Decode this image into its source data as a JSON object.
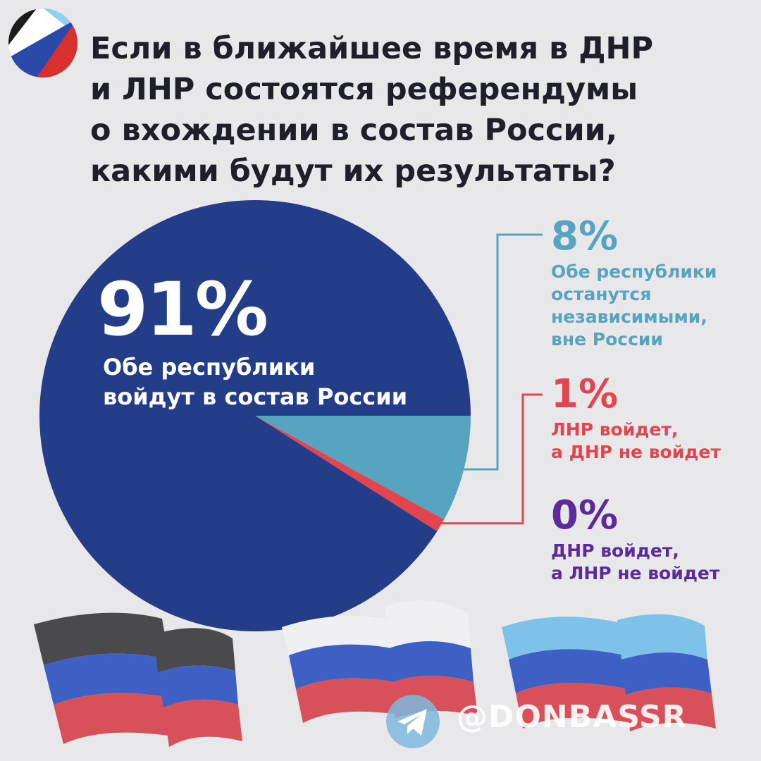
{
  "title": "Если в ближайшее время в ДНР\nи ЛНР состоятся референдумы\nо вхождении в состав России,\nкакими будут их результаты?",
  "colors": {
    "background": "#e8e8ea",
    "main_slice": "#233d89",
    "independent": "#56a4bf",
    "lnr_only": "#e2454e",
    "dnr_only": "#5d2a9c",
    "title_text": "#1f1f2a"
  },
  "icons": {
    "logo": "ru-flag-circle-icon",
    "watermark": "telegram-icon"
  },
  "watermark": "@DONBASSR",
  "chart_data": {
    "type": "pie",
    "title": "Если в ближайшее время в ДНР и ЛНР состоятся референдумы о вхождении в состав России, какими будут их результаты?",
    "start_angle_deg": 0,
    "direction": "clockwise",
    "slices": [
      {
        "value": 8,
        "pct_label": "8%",
        "label": "Обе республики\nостанутся\nнезависимыми,\nвне России",
        "color": "#56a4bf"
      },
      {
        "value": 1,
        "pct_label": "1%",
        "label": "ЛНР войдет,\nа ДНР не войдет",
        "color": "#e2454e"
      },
      {
        "value": 0,
        "pct_label": "0%",
        "label": "ДНР войдет,\nа ЛНР не войдет",
        "color": "#5d2a9c"
      },
      {
        "value": 91,
        "pct_label": "91%",
        "label": "Обе республики\nвойдут в состав России",
        "color": "#233d89"
      }
    ]
  }
}
